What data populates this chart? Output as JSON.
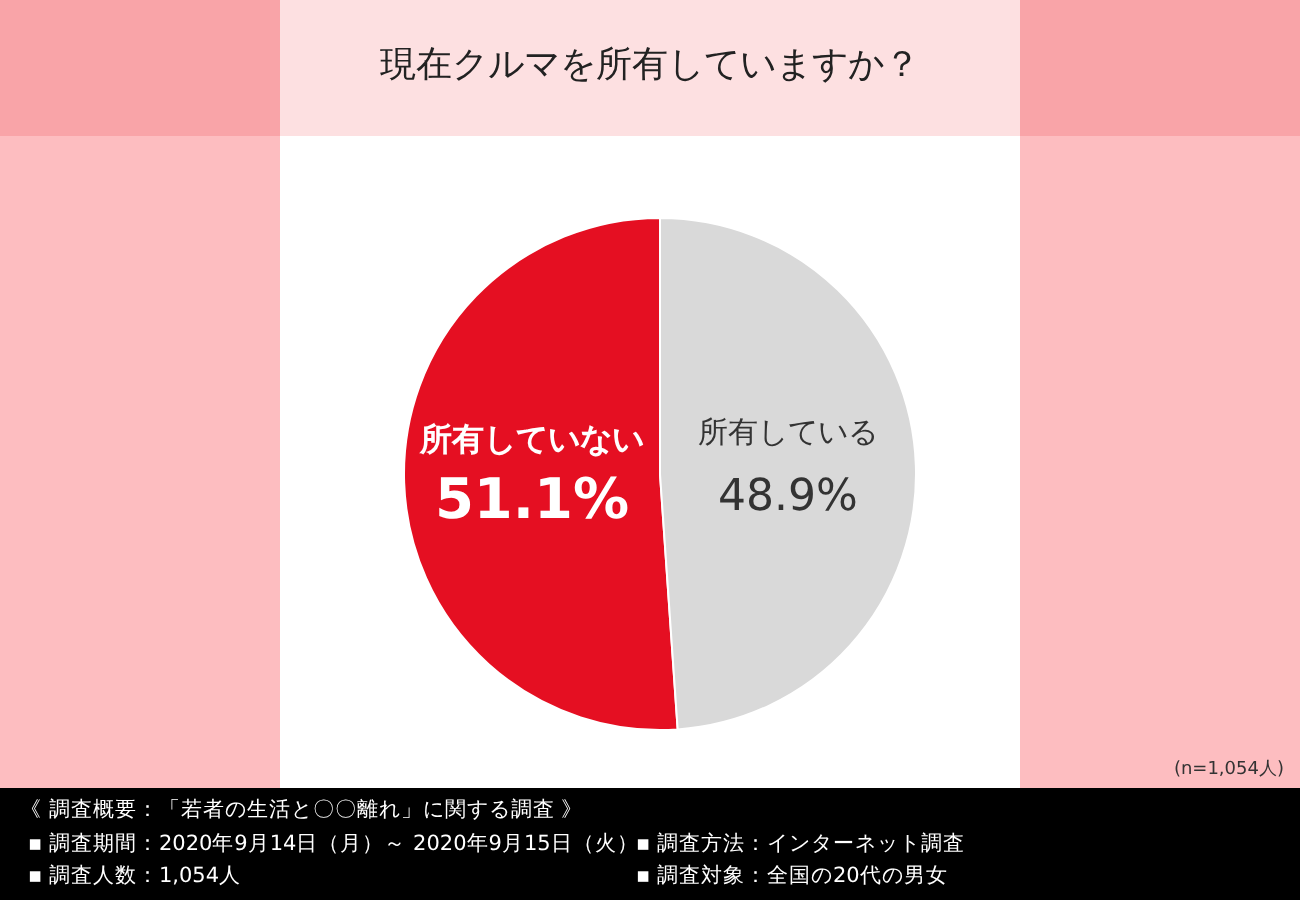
{
  "chart_data": {
    "type": "pie",
    "title": "現在クルマを所有していますか？",
    "categories": [
      "所有していない",
      "所有している"
    ],
    "values": [
      51.1,
      48.9
    ],
    "colors": [
      "#e50f22",
      "#d9d9d9"
    ],
    "value_labels": [
      "51.1%",
      "48.9%"
    ],
    "legend": false,
    "annotations": [
      "(n=1,054人)",
      "《 調査概要：「若者の生活と〇〇離れ」に関する調査 》",
      "▪ 調査期間：2020年9月14日（月）～ 2020年9月15日（火）",
      "▪ 調査方法：インターネット調査",
      "▪ 調査人数：1,054人",
      "▪ 調査対象：全国の20代の男女"
    ]
  }
}
